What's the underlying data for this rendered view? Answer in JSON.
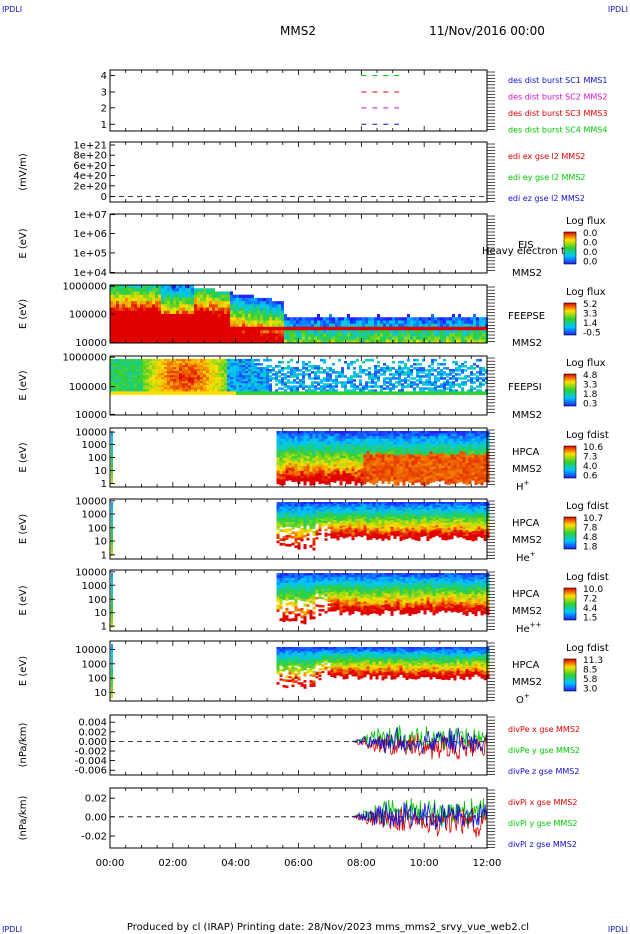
{
  "header": {
    "corner_left": "IPDLI",
    "corner_right": "IPDLI",
    "spacecraft": "MMS2",
    "date": "11/Nov/2016 00:00"
  },
  "footer": {
    "text": "Produced by cl (IRAP)   Printing date: 28/Nov/2023   mms_mms2_srvy_vue_web2.cl",
    "corner_left": "IPDLI",
    "corner_right": "IPDLI"
  },
  "colors": {
    "blue": "#1010d0",
    "magenta": "#d010d0",
    "red": "#e00000",
    "green": "#00c800"
  },
  "chart_data": [
    {
      "id": "p1",
      "type": "line",
      "yticks": [
        "4",
        "3",
        "2",
        "1"
      ],
      "series": [
        {
          "name": "des dist burst SC1 MMS1",
          "color": "#1010d0",
          "y": 1,
          "x": [
            8.0,
            9.2
          ]
        },
        {
          "name": "des dist burst SC2 MMS2",
          "color": "#d010d0",
          "y": 2,
          "x": [
            8.0,
            9.2
          ]
        },
        {
          "name": "des dist burst SC3 MMS3",
          "color": "#e00000",
          "y": 3,
          "x": [
            8.0,
            9.2
          ]
        },
        {
          "name": "des dist burst SC4 MMS4",
          "color": "#00c800",
          "y": 4,
          "x": [
            8.0,
            9.2
          ]
        }
      ]
    },
    {
      "id": "p2",
      "type": "line",
      "ylabel": "(mV/m)",
      "yticks": [
        "1e+21",
        "8e+20",
        "6e+20",
        "4e+20",
        "2e+20",
        "0"
      ],
      "series": [
        {
          "name": "edi ex gse l2 MMS2",
          "color": "#e00000"
        },
        {
          "name": "edi ey gse l2 MMS2",
          "color": "#00c800"
        },
        {
          "name": "edi ez gse l2 MMS2",
          "color": "#1010d0"
        }
      ]
    },
    {
      "id": "p3",
      "type": "heatmap",
      "ylabel": "E (eV)",
      "yticks": [
        "1e+07",
        "1e+06",
        "1e+05",
        "1e+04"
      ],
      "instrument": "EIS",
      "sc": "MMS2",
      "overlay": "Heavy electron to",
      "cbar_title": "Log flux",
      "cbar_ticks": [
        "0.0",
        "0.0",
        "0.0",
        "0.0"
      ]
    },
    {
      "id": "p4",
      "type": "heatmap",
      "ylabel": "E (eV)",
      "yticks": [
        "1000000",
        "100000",
        "10000"
      ],
      "instrument": "FEEPSE",
      "sc": "MMS2",
      "cbar_title": "Log flux",
      "cbar_ticks": [
        "5.2",
        "3.3",
        "1.4",
        "-0.5"
      ]
    },
    {
      "id": "p5",
      "type": "heatmap",
      "ylabel": "E (eV)",
      "yticks": [
        "1000000",
        "100000",
        "10000"
      ],
      "instrument": "FEEPSI",
      "sc": "MMS2",
      "cbar_title": "Log flux",
      "cbar_ticks": [
        "4.8",
        "3.3",
        "1.8",
        "0.3"
      ]
    },
    {
      "id": "p6",
      "type": "heatmap",
      "ylabel": "E (eV)",
      "yticks": [
        "10000",
        "1000",
        "100",
        "10",
        "1"
      ],
      "instrument": "HPCA",
      "sc": "MMS2",
      "ion": "H",
      "ion_sup": "+",
      "cbar_title": "Log fdist",
      "cbar_ticks": [
        "10.6",
        "7.3",
        "4.0",
        "0.6"
      ]
    },
    {
      "id": "p7",
      "type": "heatmap",
      "ylabel": "E (eV)",
      "yticks": [
        "10000",
        "1000",
        "100",
        "10",
        "1"
      ],
      "instrument": "HPCA",
      "sc": "MMS2",
      "ion": "He",
      "ion_sup": "+",
      "cbar_title": "Log fdist",
      "cbar_ticks": [
        "10.7",
        "7.8",
        "4.8",
        "1.8"
      ]
    },
    {
      "id": "p8",
      "type": "heatmap",
      "ylabel": "E (eV)",
      "yticks": [
        "10000",
        "1000",
        "100",
        "10",
        "1"
      ],
      "instrument": "HPCA",
      "sc": "MMS2",
      "ion": "He",
      "ion_sup": "++",
      "cbar_title": "Log fdist",
      "cbar_ticks": [
        "10.0",
        "7.2",
        "4.4",
        "1.5"
      ]
    },
    {
      "id": "p9",
      "type": "heatmap",
      "ylabel": "E (eV)",
      "yticks": [
        "10000",
        "1000",
        "100",
        "10"
      ],
      "instrument": "HPCA",
      "sc": "MMS2",
      "ion": "O",
      "ion_sup": "+",
      "cbar_title": "Log fdist",
      "cbar_ticks": [
        "11.3",
        "8.5",
        "5.8",
        "3.0"
      ]
    },
    {
      "id": "p10",
      "type": "line",
      "ylabel": "(nPa/km)",
      "yticks": [
        "0.004",
        "0.002",
        "0.000",
        "-0.002",
        "-0.004",
        "-0.006"
      ],
      "series": [
        {
          "name": "divPe x gse MMS2",
          "color": "#e00000"
        },
        {
          "name": "divPe y gse MMS2",
          "color": "#00c800"
        },
        {
          "name": "divPe z gse MMS2",
          "color": "#1010d0"
        }
      ]
    },
    {
      "id": "p11",
      "type": "line",
      "ylabel": "(nPa/km)",
      "yticks": [
        "0.02",
        "0.00",
        "-0.02"
      ],
      "series": [
        {
          "name": "divPi x gse MMS2",
          "color": "#e00000"
        },
        {
          "name": "divPi y gse MMS2",
          "color": "#00c800"
        },
        {
          "name": "divPi z gse MMS2",
          "color": "#1010d0"
        }
      ]
    }
  ],
  "time_axis": {
    "labels": [
      "00:00",
      "02:00",
      "04:00",
      "06:00",
      "08:00",
      "10:00",
      "12:00"
    ],
    "range_hours": [
      0,
      12
    ]
  }
}
